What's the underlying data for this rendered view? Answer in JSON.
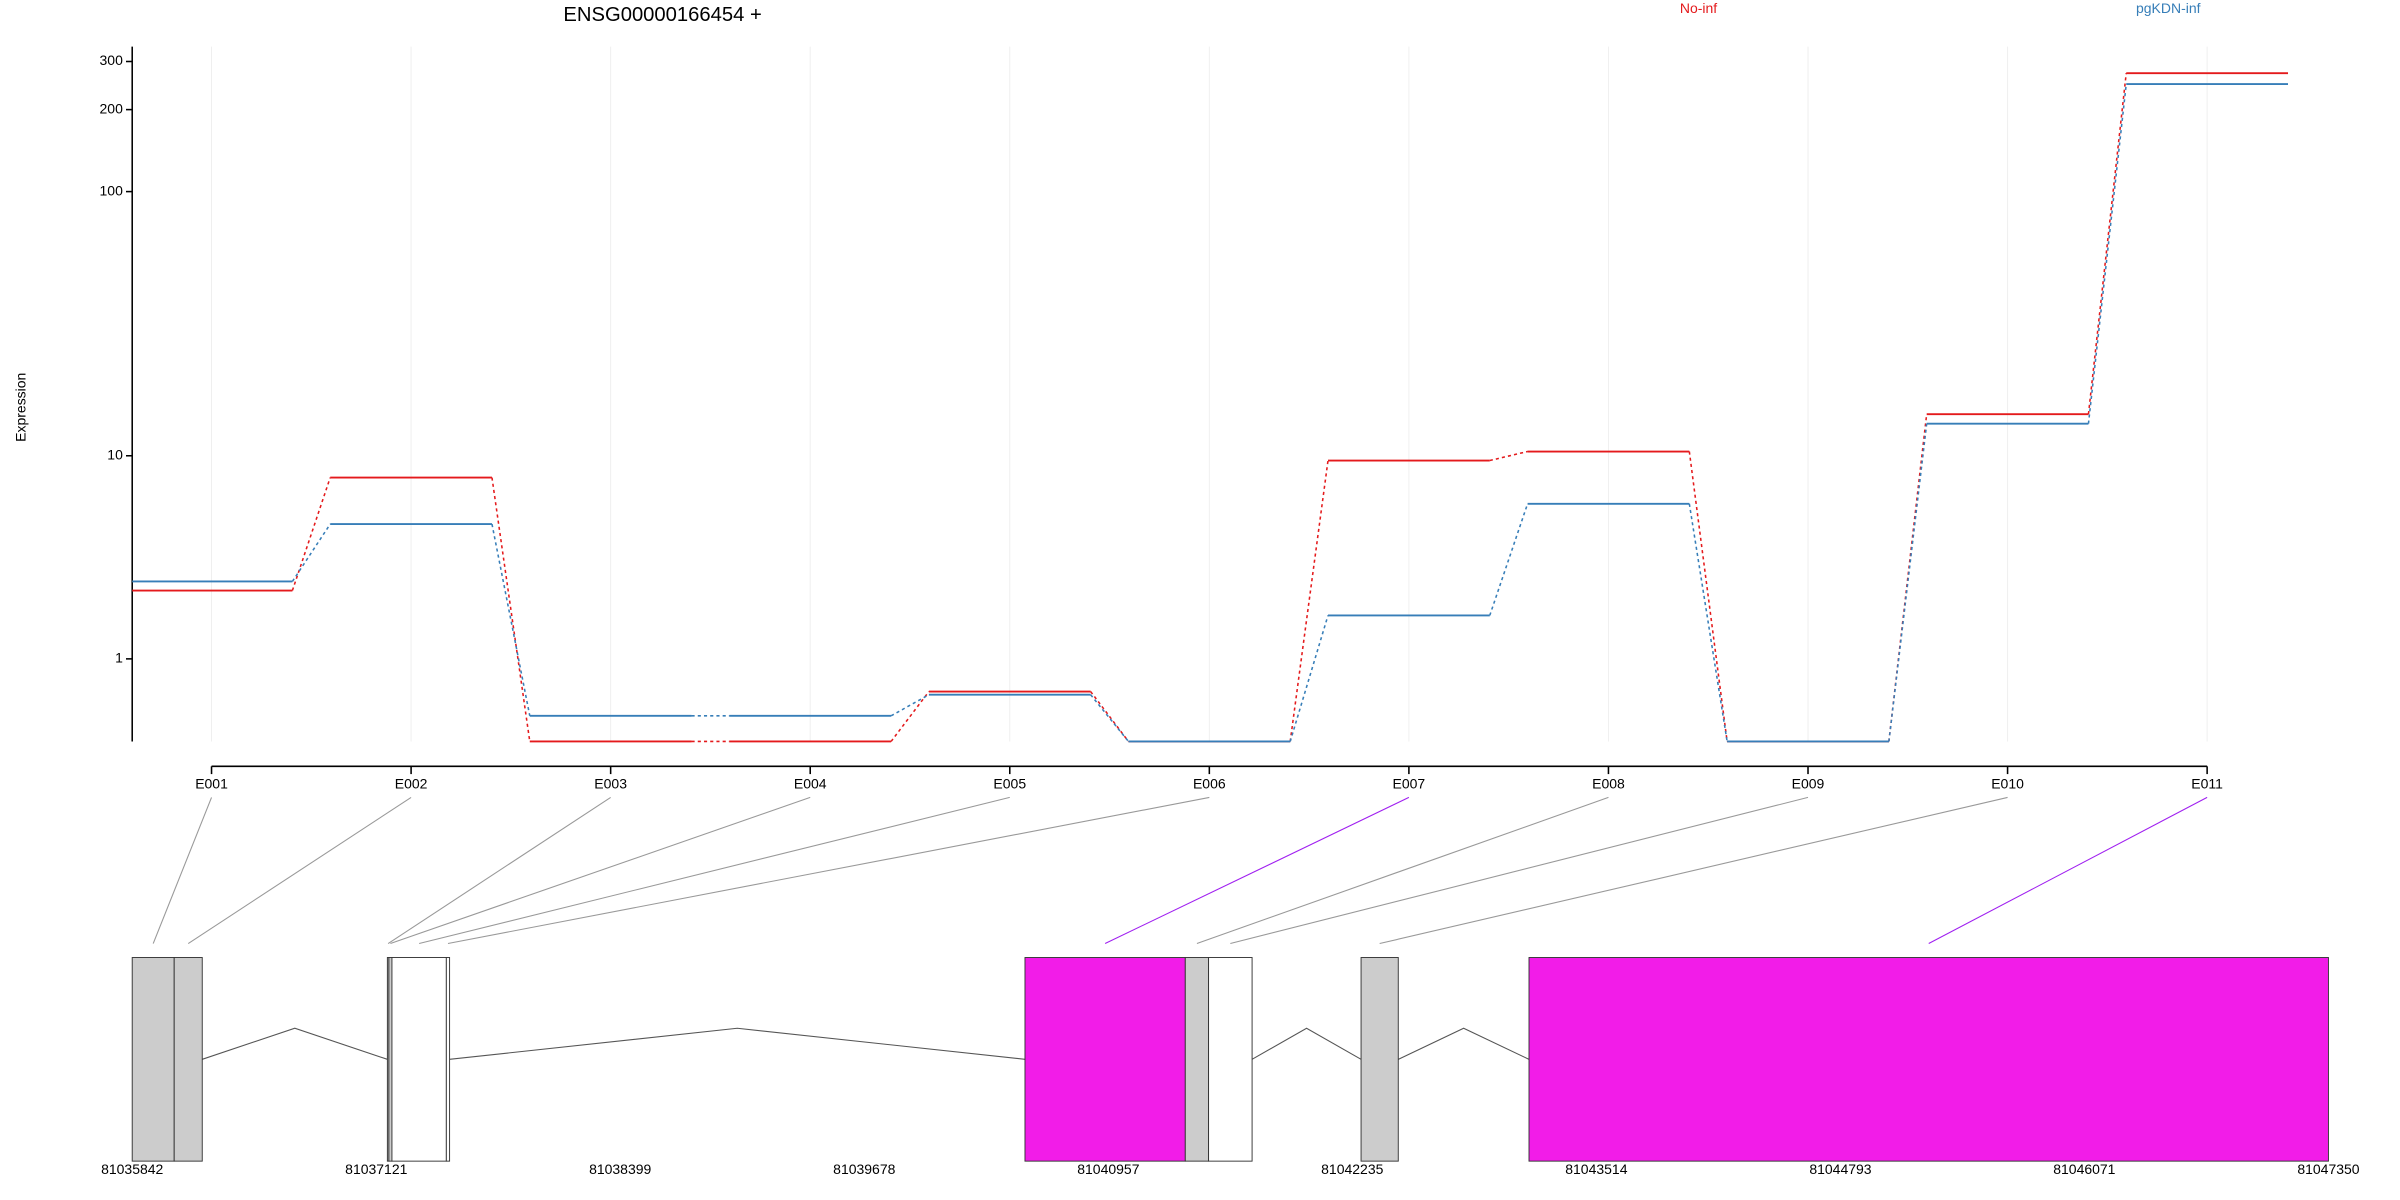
{
  "chart_data": {
    "type": "line",
    "title": "ENSG00000166454 +",
    "ylabel": "Expression",
    "categories": [
      "E001",
      "E002",
      "E003",
      "E004",
      "E005",
      "E006",
      "E007",
      "E008",
      "E009",
      "E010",
      "E011"
    ],
    "series": [
      {
        "name": "No-inf",
        "color": "#e41a1c",
        "values": [
          2.55,
          8.16,
          0,
          0,
          0.52,
          0,
          9.57,
          10.4,
          0,
          14.6,
          272
        ]
      },
      {
        "name": "pgKDN-inf",
        "color": "#377eb8",
        "values": [
          2.83,
          5.2,
          0.24,
          0.24,
          0.48,
          0,
          1.88,
          6.35,
          0,
          13.4,
          248
        ]
      }
    ],
    "ylim": [
      0,
      340
    ],
    "yticks": [
      1,
      10,
      100,
      200,
      300
    ],
    "yscale": "log1p",
    "grid": true,
    "gene_model": {
      "xlim": [
        81035842,
        81047350
      ],
      "xticks": [
        81035842,
        81037121,
        81038399,
        81039678,
        81040957,
        81042235,
        81043514,
        81044793,
        81046071,
        81047350
      ],
      "exons": [
        [
          81035842,
          81036062
        ],
        [
          81036062,
          81036209
        ],
        [
          81037179,
          81037187
        ],
        [
          81037187,
          81037203
        ],
        [
          81037203,
          81037488
        ],
        [
          81037488,
          81037505
        ],
        [
          81040520,
          81041360
        ],
        [
          81041360,
          81041482
        ],
        [
          81041482,
          81041710
        ],
        [
          81042281,
          81042476
        ],
        [
          81043161,
          81047350
        ]
      ],
      "exon_colors": [
        "#cccccc",
        "#cccccc",
        "#cccccc",
        "#cccccc",
        "#ffffff",
        "#ffffff",
        "#f21ce8",
        "#cccccc",
        "#ffffff",
        "#cccccc",
        "#f21ce8"
      ],
      "link_colors": [
        "#999999",
        "#999999",
        "#999999",
        "#999999",
        "#999999",
        "#999999",
        "#a020f0",
        "#999999",
        "#999999",
        "#999999",
        "#a020f0"
      ]
    }
  }
}
